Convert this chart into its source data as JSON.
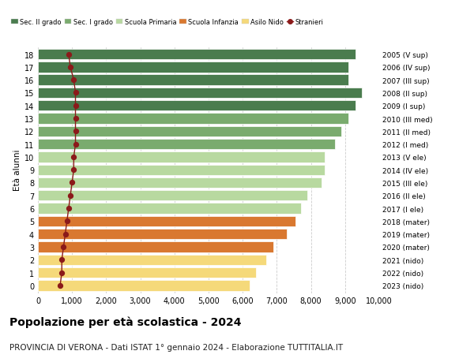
{
  "ages": [
    18,
    17,
    16,
    15,
    14,
    13,
    12,
    11,
    10,
    9,
    8,
    7,
    6,
    5,
    4,
    3,
    2,
    1,
    0
  ],
  "right_labels": [
    "2005 (V sup)",
    "2006 (IV sup)",
    "2007 (III sup)",
    "2008 (II sup)",
    "2009 (I sup)",
    "2010 (III med)",
    "2011 (II med)",
    "2012 (I med)",
    "2013 (V ele)",
    "2014 (IV ele)",
    "2015 (III ele)",
    "2016 (II ele)",
    "2017 (I ele)",
    "2018 (mater)",
    "2019 (mater)",
    "2020 (mater)",
    "2021 (nido)",
    "2022 (nido)",
    "2023 (nido)"
  ],
  "bar_values": [
    9300,
    9100,
    9100,
    9500,
    9300,
    9100,
    8900,
    8700,
    8400,
    8400,
    8300,
    7900,
    7700,
    7550,
    7300,
    6900,
    6700,
    6400,
    6200
  ],
  "stranieri_values": [
    900,
    950,
    1050,
    1100,
    1100,
    1100,
    1100,
    1100,
    1050,
    1050,
    1000,
    950,
    900,
    850,
    800,
    750,
    700,
    700,
    650
  ],
  "bar_colors": [
    "#4a7c4e",
    "#4a7c4e",
    "#4a7c4e",
    "#4a7c4e",
    "#4a7c4e",
    "#7aab6e",
    "#7aab6e",
    "#7aab6e",
    "#b8d9a0",
    "#b8d9a0",
    "#b8d9a0",
    "#b8d9a0",
    "#b8d9a0",
    "#d97830",
    "#d97830",
    "#d97830",
    "#f5d97a",
    "#f5d97a",
    "#f5d97a"
  ],
  "legend_labels": [
    "Sec. II grado",
    "Sec. I grado",
    "Scuola Primaria",
    "Scuola Infanzia",
    "Asilo Nido",
    "Stranieri"
  ],
  "legend_colors": [
    "#4a7c4e",
    "#7aab6e",
    "#b8d9a0",
    "#d97830",
    "#f5d97a",
    "#8b1a1a"
  ],
  "stranieri_color": "#8b1a1a",
  "ylabel_left": "Età alunni",
  "title": "Popolazione per età scolastica - 2024",
  "subtitle": "PROVINCIA DI VERONA - Dati ISTAT 1° gennaio 2024 - Elaborazione TUTTITALIA.IT",
  "xlim": [
    0,
    10000
  ],
  "xticks": [
    0,
    1000,
    2000,
    3000,
    4000,
    5000,
    6000,
    7000,
    8000,
    9000,
    10000
  ],
  "xtick_labels": [
    "0",
    "1,000",
    "2,000",
    "3,000",
    "4,000",
    "5,000",
    "6,000",
    "7,000",
    "8,000",
    "9,000",
    "10,000"
  ],
  "bg_color": "#ffffff",
  "grid_color": "#cccccc",
  "bar_height": 0.82,
  "title_fontsize": 10,
  "subtitle_fontsize": 7.5
}
